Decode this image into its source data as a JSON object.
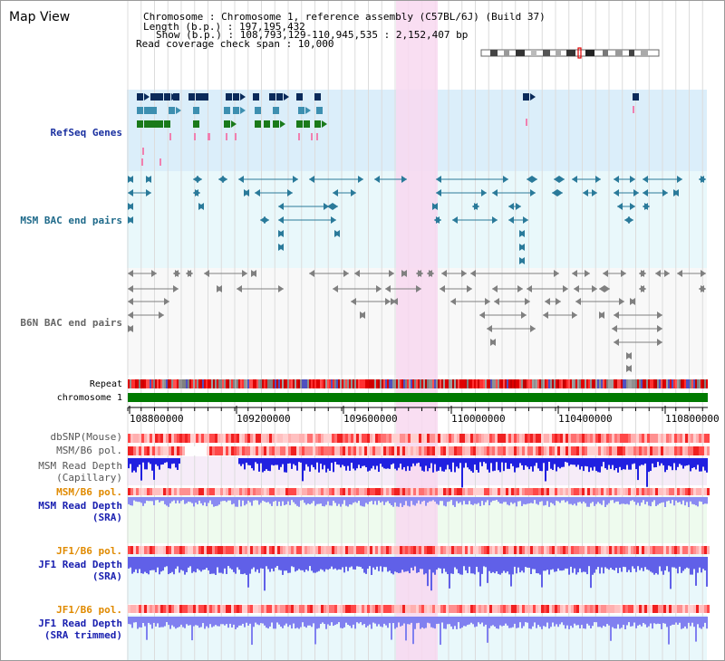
{
  "header": {
    "map_title": "Map View",
    "info_lines": [
      "Chromosome     : Chromosome 1, reference assembly (C57BL/6J) (Build 37)",
      "Length (b.p.) : 197,195,432",
      "Show (b.p.) : 108,793,129-110,945,535 : 2,152,407 bp",
      "Read coverage check span : 10,000"
    ]
  },
  "tracks": {
    "refseq": "RefSeq Genes",
    "msm_bac": "MSM BAC end pairs",
    "b6n_bac": "B6N BAC end pairs",
    "repeat": "Repeat",
    "chromosome": "chromosome 1",
    "dbsnp": "dbSNP(Mouse)",
    "msm_b6_pol_1": "MSM/B6 pol.",
    "msm_depth_cap_1": "MSM Read Depth",
    "msm_depth_cap_2": "(Capillary)",
    "msm_b6_pol_2": "MSM/B6 pol.",
    "msm_depth_sra_1": "MSM Read Depth",
    "msm_depth_sra_2": "(SRA)",
    "jf1_b6_pol_1": "JF1/B6 pol.",
    "jf1_depth_sra_1": "JF1 Read Depth",
    "jf1_depth_sra_2": "(SRA)",
    "jf1_b6_pol_2": "JF1/B6 pol.",
    "jf1_depth_trim_1": "JF1 Read Depth",
    "jf1_depth_trim_2": "(SRA trimmed)"
  },
  "axis": {
    "ticks": [
      "108800000",
      "109200000",
      "109600000",
      "110000000",
      "110400000",
      "110800000"
    ]
  },
  "colors": {
    "refseq_dark": "#0a2a5a",
    "refseq_mid": "#3d8fb0",
    "refseq_green": "#1a7a1a",
    "msm_bac": "#2a7a9a",
    "b6n_bac": "#808080",
    "highlight": "#f8d8f0",
    "chromosome": "#007a00",
    "depth_blue": "#2020e0",
    "depth_light": "#8080f0"
  }
}
